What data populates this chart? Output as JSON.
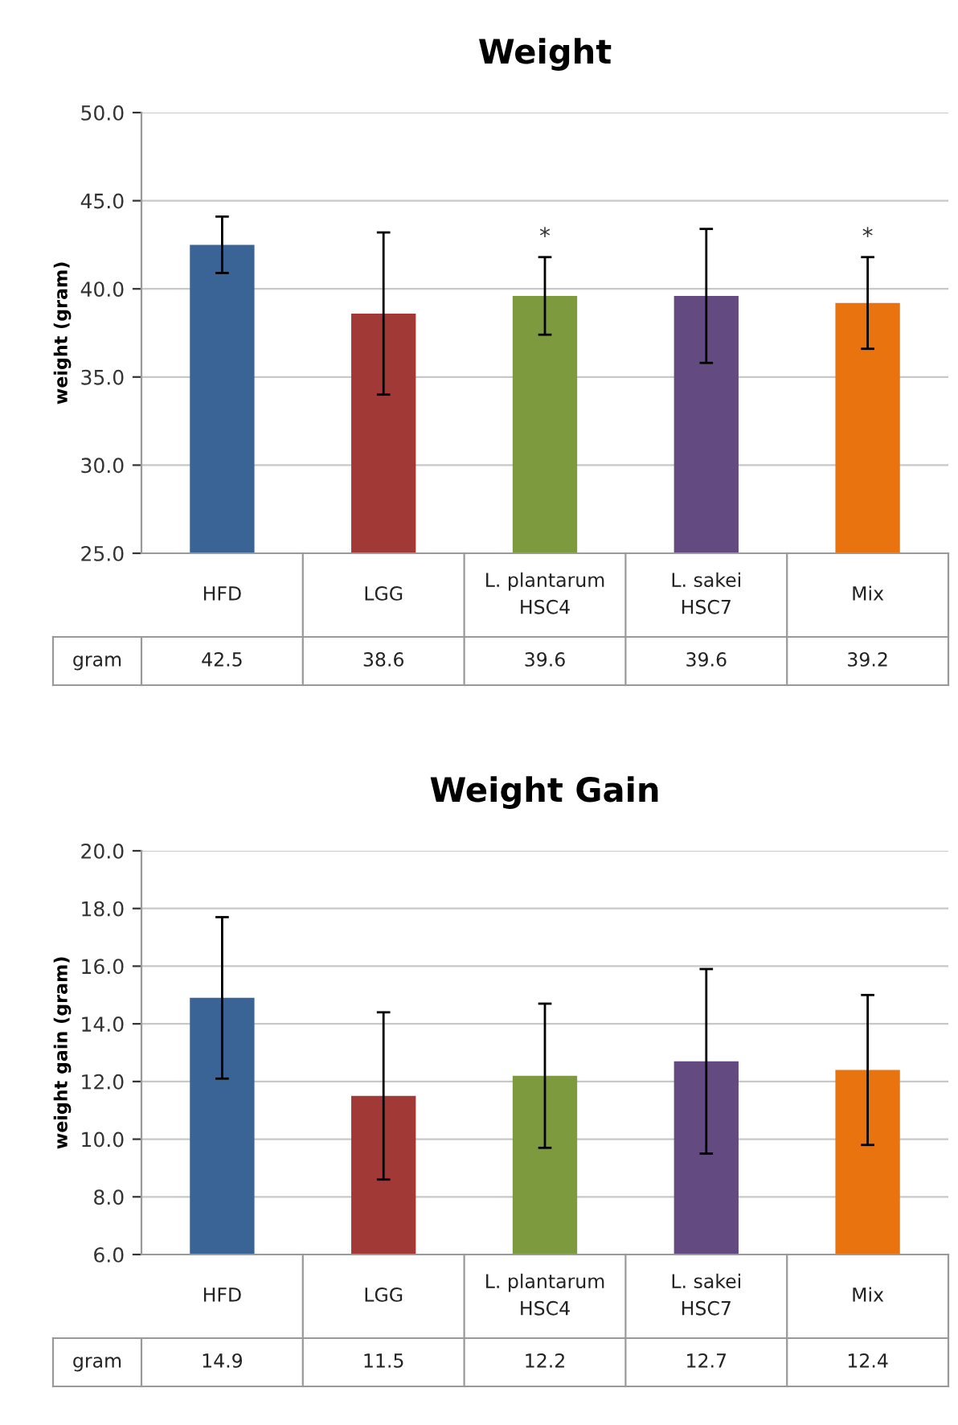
{
  "chart_data": [
    {
      "type": "bar",
      "title": "Weight",
      "ylabel": "weight (gram)",
      "categories": [
        "HFD",
        "LGG",
        "L. plantarum\nHSC4",
        "L. sakei\nHSC7",
        "Mix"
      ],
      "values": [
        42.5,
        38.6,
        39.6,
        39.6,
        39.2
      ],
      "colors": [
        "#3a6396",
        "#a13a37",
        "#7e9a3f",
        "#634b82",
        "#e8730f"
      ],
      "errors": [
        1.6,
        4.6,
        2.2,
        3.8,
        2.6
      ],
      "data_labels": true,
      "ylim": [
        25,
        50
      ],
      "yticks": [
        {
          "value": 25,
          "label": "25.0"
        },
        {
          "value": 30,
          "label": "30.0"
        },
        {
          "value": 35,
          "label": "35.0"
        },
        {
          "value": 40,
          "label": "40.0"
        },
        {
          "value": 45,
          "label": "45.0"
        },
        {
          "value": 50,
          "label": "50.0"
        }
      ],
      "grid": "y",
      "legend": false,
      "tick_labels": "y",
      "annotations": [
        "gram",
        {
          "text": "*",
          "x": "L. plantarum\nHSC4",
          "y": 41.8
        },
        {
          "text": "*",
          "x": "Mix",
          "y": 41.8
        }
      ]
    },
    {
      "type": "bar",
      "title": "Weight Gain",
      "ylabel": "weight gain (gram)",
      "categories": [
        "HFD",
        "LGG",
        "L. plantarum\nHSC4",
        "L. sakei\nHSC7",
        "Mix"
      ],
      "values": [
        14.9,
        11.5,
        12.2,
        12.7,
        12.4
      ],
      "colors": [
        "#3a6396",
        "#a13a37",
        "#7e9a3f",
        "#634b82",
        "#e8730f"
      ],
      "errors": [
        2.8,
        2.9,
        2.5,
        3.2,
        2.6
      ],
      "data_labels": true,
      "ylim": [
        6,
        20
      ],
      "yticks": [
        {
          "value": 6,
          "label": "6.0"
        },
        {
          "value": 8,
          "label": "8.0"
        },
        {
          "value": 10,
          "label": "10.0"
        },
        {
          "value": 12,
          "label": "12.0"
        },
        {
          "value": 14,
          "label": "14.0"
        },
        {
          "value": 16,
          "label": "16.0"
        },
        {
          "value": 18,
          "label": "18.0"
        },
        {
          "value": 20,
          "label": "20.0"
        }
      ],
      "grid": "y",
      "legend": false,
      "tick_labels": "y",
      "annotations": [
        "gram"
      ]
    }
  ]
}
